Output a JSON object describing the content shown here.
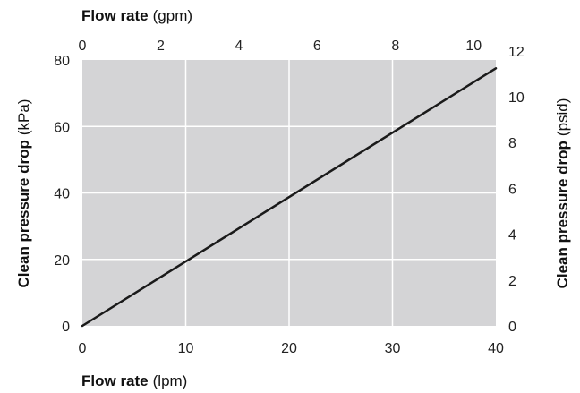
{
  "chart_data": {
    "type": "line",
    "x_bottom": {
      "label_bold": "Flow rate",
      "label_unit": "(lpm)",
      "range": [
        0,
        40
      ],
      "ticks": [
        0,
        10,
        20,
        30,
        40
      ]
    },
    "x_top": {
      "label_bold": "Flow rate",
      "label_unit": "(gpm)",
      "range": [
        0,
        10.5669
      ],
      "ticks": [
        0,
        2,
        4,
        6,
        8,
        10
      ]
    },
    "y_left": {
      "label_bold": "Clean pressure drop",
      "label_unit": "(kPa)",
      "range": [
        0,
        80
      ],
      "ticks": [
        0,
        20,
        40,
        60,
        80
      ]
    },
    "y_right": {
      "label_bold": "Clean pressure drop",
      "label_unit": "(psid)",
      "range": [
        0,
        11.603
      ],
      "ticks": [
        0,
        2,
        4,
        6,
        8,
        10,
        12
      ]
    },
    "series": [
      {
        "x": [
          0,
          40
        ],
        "y": [
          0,
          77.5
        ],
        "color": "#1a1a1a"
      }
    ],
    "grid": true,
    "plot_background": "#d4d4d6",
    "grid_color": "#ffffff"
  }
}
